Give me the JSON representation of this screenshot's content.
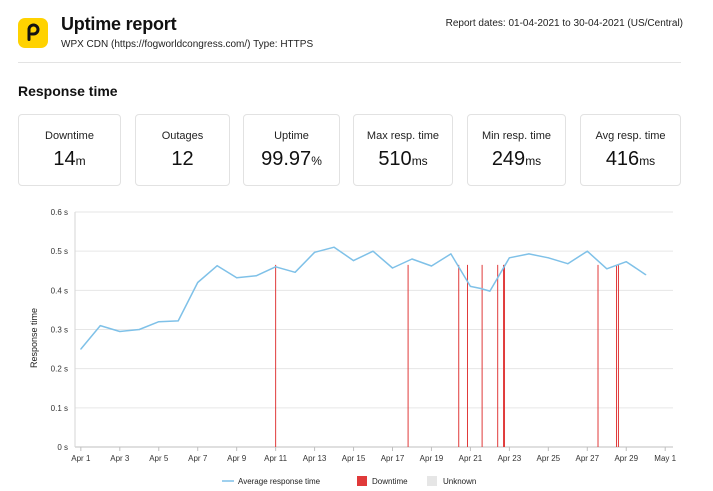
{
  "header": {
    "title": "Uptime report",
    "subtitle": "WPX CDN (https://fogworldcongress.com/) Type: HTTPS",
    "report_dates": "Report dates: 01-04-2021 to 30-04-2021 (US/Central)",
    "logo_icon": "pingdom-logo-icon",
    "logo_color": "#ffd200"
  },
  "section": {
    "title": "Response time"
  },
  "stats": [
    {
      "label": "Downtime",
      "value": "14",
      "unit": "m"
    },
    {
      "label": "Outages",
      "value": "12",
      "unit": ""
    },
    {
      "label": "Uptime",
      "value": "99.97",
      "unit": "%"
    },
    {
      "label": "Max resp. time",
      "value": "510",
      "unit": "ms"
    },
    {
      "label": "Min resp. time",
      "value": "249",
      "unit": "ms"
    },
    {
      "label": "Avg resp. time",
      "value": "416",
      "unit": "ms"
    }
  ],
  "chart_data": {
    "type": "line",
    "title": "",
    "ylabel": "Response time",
    "xlabel": "",
    "ylim": [
      0,
      0.6
    ],
    "yticks": [
      0,
      0.1,
      0.2,
      0.3,
      0.4,
      0.5,
      0.6
    ],
    "ytick_labels": [
      "0 s",
      "0.1 s",
      "0.2 s",
      "0.3 s",
      "0.4 s",
      "0.5 s",
      "0.6 s"
    ],
    "xlim": [
      0.7,
      31.4
    ],
    "xticks": [
      1,
      3,
      5,
      7,
      9,
      11,
      13,
      15,
      17,
      19,
      21,
      23,
      25,
      27,
      29,
      31
    ],
    "xtick_labels": [
      "Apr 1",
      "Apr 3",
      "Apr 5",
      "Apr 7",
      "Apr 9",
      "Apr 11",
      "Apr 13",
      "Apr 15",
      "Apr 17",
      "Apr 19",
      "Apr 21",
      "Apr 23",
      "Apr 25",
      "Apr 27",
      "Apr 29",
      "May 1"
    ],
    "grid": true,
    "legend_position": "bottom",
    "series": [
      {
        "name": "Average response time",
        "color": "#7fc1e8",
        "x": [
          1,
          2,
          3,
          4,
          5,
          6,
          7,
          8,
          9,
          10,
          11,
          12,
          13,
          14,
          15,
          16,
          17,
          18,
          19,
          20,
          21,
          21.5,
          22,
          23,
          24,
          25,
          26,
          27,
          28,
          29,
          30
        ],
        "values": [
          0.25,
          0.31,
          0.295,
          0.3,
          0.32,
          0.322,
          0.42,
          0.463,
          0.432,
          0.437,
          0.46,
          0.446,
          0.497,
          0.51,
          0.476,
          0.5,
          0.457,
          0.48,
          0.462,
          0.493,
          0.41,
          0.405,
          0.398,
          0.483,
          0.493,
          0.483,
          0.468,
          0.5,
          0.455,
          0.473,
          0.44
        ]
      }
    ],
    "downtime": {
      "name": "Downtime",
      "color": "#e03a3a",
      "x": [
        11,
        17.8,
        20.4,
        20.85,
        21.6,
        22.4,
        22.7,
        22.75,
        27.55,
        28.5,
        28.6
      ]
    },
    "unknown": {
      "name": "Unknown",
      "color": "#e6e6e6"
    }
  }
}
